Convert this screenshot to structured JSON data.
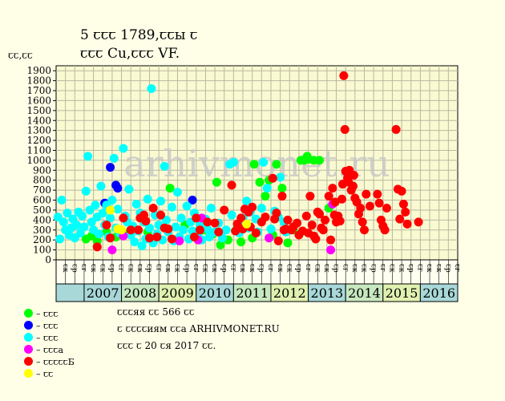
{
  "chart_data": {
    "type": "scatter",
    "title": [
      "5 ꞇꞇꞇ 1789,ꞇꞇы ꞇ",
      "ꞇꞇꞇ Cu,ꞇꞇꞇ VF."
    ],
    "ylabel": "ꞇꞇ,ꞇꞇ",
    "xlabel": "",
    "ylim": [
      0,
      1950
    ],
    "yticks": [
      0,
      100,
      200,
      300,
      400,
      500,
      600,
      700,
      800,
      900,
      1000,
      1100,
      1200,
      1300,
      1400,
      1500,
      1600,
      1700,
      1800,
      1900
    ],
    "years": [
      "2007",
      "2008",
      "2009",
      "2010",
      "2011",
      "2012",
      "2013",
      "2014",
      "2015",
      "2016"
    ],
    "quarter_labels": [
      "ꞇк",
      "ꞇр",
      "ꞇг",
      "ꞇк"
    ],
    "xlim": [
      2006.25,
      2017.0
    ],
    "watermark": "arhivmonet.ru",
    "grid": true,
    "series": [
      {
        "color": "#00ff00",
        "points": [
          [
            2007.05,
            210
          ],
          [
            2007.2,
            240
          ],
          [
            2007.35,
            190
          ],
          [
            2007.6,
            280
          ],
          [
            2007.85,
            230
          ],
          [
            2008.1,
            260
          ],
          [
            2008.4,
            300
          ],
          [
            2008.7,
            280
          ],
          [
            2009.3,
            720
          ],
          [
            2009.7,
            350
          ],
          [
            2010.2,
            300
          ],
          [
            2010.45,
            260
          ],
          [
            2010.55,
            780
          ],
          [
            2010.65,
            150
          ],
          [
            2010.85,
            200
          ],
          [
            2011.05,
            290
          ],
          [
            2011.2,
            180
          ],
          [
            2011.5,
            220
          ],
          [
            2011.55,
            960
          ],
          [
            2011.7,
            780
          ],
          [
            2011.85,
            640
          ],
          [
            2011.95,
            800
          ],
          [
            2012.05,
            250
          ],
          [
            2012.15,
            960
          ],
          [
            2012.3,
            720
          ],
          [
            2012.45,
            170
          ],
          [
            2012.6,
            300
          ],
          [
            2012.8,
            1000
          ],
          [
            2012.9,
            1000
          ],
          [
            2012.97,
            1040
          ],
          [
            2013.0,
            1010
          ],
          [
            2013.15,
            1000
          ],
          [
            2013.3,
            1000
          ],
          [
            2013.55,
            520
          ]
        ]
      },
      {
        "color": "#0000ff",
        "points": [
          [
            2007.55,
            570
          ],
          [
            2007.7,
            930
          ],
          [
            2007.85,
            750
          ],
          [
            2007.9,
            720
          ],
          [
            2009.9,
            600
          ]
        ]
      },
      {
        "color": "#00ffff",
        "points": [
          [
            2006.3,
            430
          ],
          [
            2006.35,
            210
          ],
          [
            2006.4,
            600
          ],
          [
            2006.45,
            380
          ],
          [
            2006.5,
            300
          ],
          [
            2006.55,
            470
          ],
          [
            2006.6,
            250
          ],
          [
            2006.65,
            320
          ],
          [
            2006.7,
            410
          ],
          [
            2006.75,
            220
          ],
          [
            2006.8,
            350
          ],
          [
            2006.85,
            480
          ],
          [
            2006.9,
            270
          ],
          [
            2006.95,
            440
          ],
          [
            2007.0,
            330
          ],
          [
            2007.05,
            690
          ],
          [
            2007.1,
            1040
          ],
          [
            2007.15,
            500
          ],
          [
            2007.2,
            380
          ],
          [
            2007.25,
            300
          ],
          [
            2007.3,
            550
          ],
          [
            2007.35,
            430
          ],
          [
            2007.4,
            260
          ],
          [
            2007.45,
            740
          ],
          [
            2007.5,
            470
          ],
          [
            2007.55,
            350
          ],
          [
            2007.6,
            550
          ],
          [
            2007.65,
            230
          ],
          [
            2007.7,
            420
          ],
          [
            2007.75,
            600
          ],
          [
            2007.8,
            1020
          ],
          [
            2007.85,
            320
          ],
          [
            2007.9,
            510
          ],
          [
            2007.95,
            270
          ],
          [
            2008.05,
            1120
          ],
          [
            2008.1,
            440
          ],
          [
            2008.15,
            380
          ],
          [
            2008.2,
            710
          ],
          [
            2008.25,
            250
          ],
          [
            2008.3,
            340
          ],
          [
            2008.35,
            180
          ],
          [
            2008.4,
            560
          ],
          [
            2008.45,
            290
          ],
          [
            2008.5,
            470
          ],
          [
            2008.55,
            140
          ],
          [
            2008.6,
            380
          ],
          [
            2008.65,
            210
          ],
          [
            2008.7,
            610
          ],
          [
            2008.75,
            320
          ],
          [
            2008.8,
            1720
          ],
          [
            2008.85,
            170
          ],
          [
            2008.9,
            450
          ],
          [
            2008.95,
            260
          ],
          [
            2009.0,
            350
          ],
          [
            2009.05,
            590
          ],
          [
            2009.1,
            200
          ],
          [
            2009.15,
            940
          ],
          [
            2009.2,
            400
          ],
          [
            2009.25,
            280
          ],
          [
            2009.35,
            530
          ],
          [
            2009.4,
            190
          ],
          [
            2009.45,
            330
          ],
          [
            2009.5,
            680
          ],
          [
            2009.55,
            230
          ],
          [
            2009.6,
            420
          ],
          [
            2009.65,
            300
          ],
          [
            2009.75,
            540
          ],
          [
            2009.8,
            210
          ],
          [
            2009.85,
            380
          ],
          [
            2009.9,
            290
          ],
          [
            2009.95,
            470
          ],
          [
            2010.05,
            250
          ],
          [
            2010.1,
            350
          ],
          [
            2010.15,
            200
          ],
          [
            2010.25,
            410
          ],
          [
            2010.3,
            310
          ],
          [
            2010.35,
            230
          ],
          [
            2010.4,
            520
          ],
          [
            2010.5,
            280
          ],
          [
            2010.6,
            370
          ],
          [
            2010.7,
            220
          ],
          [
            2010.8,
            300
          ],
          [
            2010.9,
            960
          ],
          [
            2010.95,
            450
          ],
          [
            2011.0,
            980
          ],
          [
            2011.1,
            330
          ],
          [
            2011.15,
            270
          ],
          [
            2011.25,
            420
          ],
          [
            2011.3,
            360
          ],
          [
            2011.35,
            590
          ],
          [
            2011.4,
            320
          ],
          [
            2011.45,
            480
          ],
          [
            2011.6,
            410
          ],
          [
            2011.65,
            280
          ],
          [
            2011.75,
            520
          ],
          [
            2011.8,
            980
          ],
          [
            2011.9,
            720
          ],
          [
            2012.0,
            310
          ],
          [
            2012.1,
            490
          ],
          [
            2012.2,
            430
          ],
          [
            2012.25,
            830
          ],
          [
            2012.35,
            380
          ],
          [
            2012.4,
            280
          ],
          [
            2012.5,
            300
          ]
        ]
      },
      {
        "color": "#ff00ff",
        "points": [
          [
            2007.75,
            100
          ],
          [
            2008.05,
            240
          ],
          [
            2009.55,
            190
          ],
          [
            2010.05,
            200
          ],
          [
            2010.15,
            420
          ],
          [
            2011.95,
            220
          ],
          [
            2013.6,
            100
          ],
          [
            2013.65,
            560
          ]
        ]
      },
      {
        "color": "#ff0000",
        "points": [
          [
            2007.35,
            130
          ],
          [
            2007.6,
            350
          ],
          [
            2007.7,
            220
          ],
          [
            2008.05,
            420
          ],
          [
            2008.25,
            300
          ],
          [
            2008.45,
            300
          ],
          [
            2008.5,
            420
          ],
          [
            2008.6,
            450
          ],
          [
            2008.65,
            390
          ],
          [
            2008.75,
            220
          ],
          [
            2008.85,
            520
          ],
          [
            2008.95,
            230
          ],
          [
            2009.05,
            450
          ],
          [
            2009.15,
            320
          ],
          [
            2009.25,
            310
          ],
          [
            2009.35,
            210
          ],
          [
            2009.95,
            230
          ],
          [
            2010.0,
            420
          ],
          [
            2010.1,
            300
          ],
          [
            2010.3,
            380
          ],
          [
            2010.5,
            370
          ],
          [
            2010.6,
            280
          ],
          [
            2010.75,
            500
          ],
          [
            2010.95,
            750
          ],
          [
            2011.05,
            290
          ],
          [
            2011.1,
            360
          ],
          [
            2011.2,
            420
          ],
          [
            2011.25,
            310
          ],
          [
            2011.3,
            510
          ],
          [
            2011.4,
            480
          ],
          [
            2011.45,
            330
          ],
          [
            2011.5,
            530
          ],
          [
            2011.6,
            270
          ],
          [
            2011.75,
            380
          ],
          [
            2011.85,
            430
          ],
          [
            2012.05,
            820
          ],
          [
            2012.1,
            410
          ],
          [
            2012.15,
            470
          ],
          [
            2012.2,
            190
          ],
          [
            2012.3,
            640
          ],
          [
            2012.35,
            300
          ],
          [
            2012.4,
            310
          ],
          [
            2012.45,
            400
          ],
          [
            2012.55,
            300
          ],
          [
            2012.6,
            330
          ],
          [
            2012.7,
            370
          ],
          [
            2012.75,
            250
          ],
          [
            2012.85,
            290
          ],
          [
            2012.95,
            440
          ],
          [
            2013.0,
            270
          ],
          [
            2013.05,
            640
          ],
          [
            2013.1,
            350
          ],
          [
            2013.15,
            240
          ],
          [
            2013.2,
            210
          ],
          [
            2013.25,
            480
          ],
          [
            2013.3,
            460
          ],
          [
            2013.35,
            320
          ],
          [
            2013.4,
            300
          ],
          [
            2013.45,
            400
          ],
          [
            2013.55,
            640
          ],
          [
            2013.6,
            200
          ],
          [
            2013.65,
            720
          ],
          [
            2013.7,
            450
          ],
          [
            2013.72,
            580
          ],
          [
            2013.75,
            380
          ],
          [
            2013.8,
            440
          ],
          [
            2013.85,
            390
          ],
          [
            2013.9,
            610
          ],
          [
            2013.92,
            760
          ],
          [
            2013.95,
            1850
          ],
          [
            2013.98,
            1310
          ],
          [
            2014.0,
            890
          ],
          [
            2014.05,
            820
          ],
          [
            2014.08,
            780
          ],
          [
            2014.1,
            900
          ],
          [
            2014.15,
            700
          ],
          [
            2014.2,
            740
          ],
          [
            2014.22,
            850
          ],
          [
            2014.25,
            620
          ],
          [
            2014.3,
            580
          ],
          [
            2014.35,
            460
          ],
          [
            2014.4,
            520
          ],
          [
            2014.45,
            380
          ],
          [
            2014.5,
            300
          ],
          [
            2014.55,
            660
          ],
          [
            2014.65,
            540
          ],
          [
            2014.85,
            660
          ],
          [
            2014.9,
            570
          ],
          [
            2014.95,
            400
          ],
          [
            2015.0,
            340
          ],
          [
            2015.05,
            300
          ],
          [
            2015.1,
            520
          ],
          [
            2015.35,
            1310
          ],
          [
            2015.4,
            710
          ],
          [
            2015.45,
            410
          ],
          [
            2015.5,
            690
          ],
          [
            2015.55,
            560
          ],
          [
            2015.6,
            480
          ],
          [
            2015.65,
            360
          ],
          [
            2015.95,
            380
          ]
        ]
      },
      {
        "color": "#ffff00",
        "points": [
          [
            2007.7,
            500
          ],
          [
            2007.9,
            310
          ],
          [
            2008.0,
            300
          ],
          [
            2011.35,
            360
          ]
        ]
      }
    ]
  },
  "legend": [
    {
      "color": "#00ff00",
      "label": "– ꞇꞇꞇ"
    },
    {
      "color": "#0000ff",
      "label": "– ꞇꞇꞇ"
    },
    {
      "color": "#00ffff",
      "label": "– ꞇꞇꞇ"
    },
    {
      "color": "#ff00ff",
      "label": "– ꞇꞇꞇа"
    },
    {
      "color": "#ff0000",
      "label": "– ꞇꞇꞇꞇꞇБ"
    },
    {
      "color": "#ffff00",
      "label": "– ꞇꞇ"
    }
  ],
  "notes": [
    "ꞇꞇꞇяя ꞇꞇ 566 ꞇꞇ",
    "ꞇ ꞇꞇꞇꞇиям ꞇꞇа ARHIVMONET.RU",
    "ꞇꞇꞇ ꞇ 20 ꞇя 2017 ꞇꞇ."
  ],
  "colors": {
    "background": "#ffffe8",
    "plot_bg": "#fafad2",
    "grid": "#b8b8a0",
    "year_bands": [
      "#a8d8d8",
      "#c8e8c0",
      "#e0f0b0"
    ]
  }
}
